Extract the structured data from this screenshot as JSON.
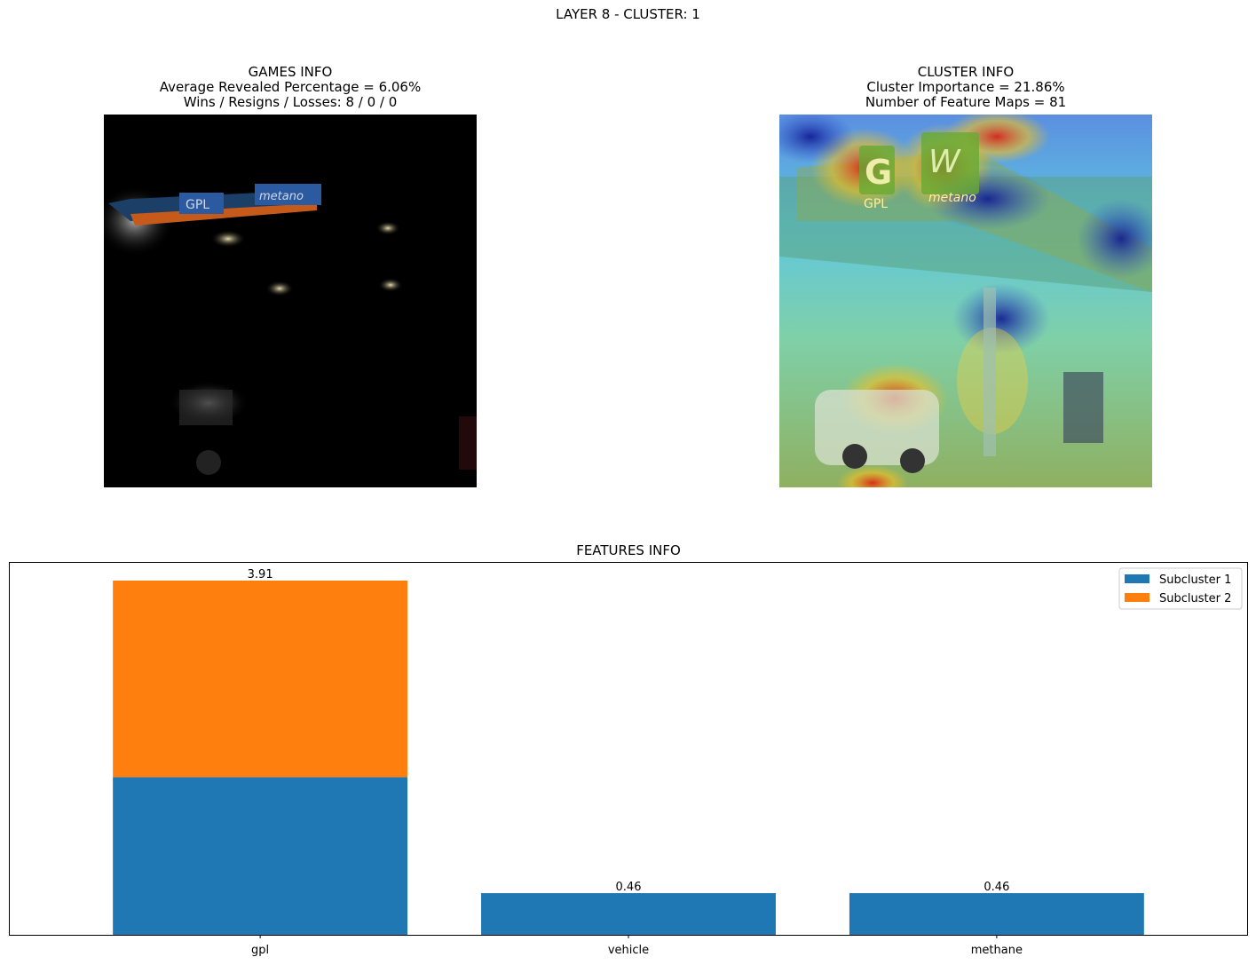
{
  "figure": {
    "suptitle": "LAYER 8 - CLUSTER: 1"
  },
  "games_info": {
    "title": "GAMES INFO",
    "line1": "Average Revealed Percentage = 6.06%",
    "line2": "Wins / Resigns / Losses: 8 / 0 / 0"
  },
  "cluster_info": {
    "title": "CLUSTER INFO",
    "line1": "Cluster Importance = 21.86%",
    "line2": "Number of Feature Maps = 81"
  },
  "images": {
    "left": {
      "depicts": "masked gas station photo (mostly black with revealed patches)"
    },
    "right": {
      "depicts": "gas station photo with jet-colormap heatmap overlay"
    }
  },
  "chart_data": {
    "type": "bar",
    "stacked": true,
    "title": "FEATURES INFO",
    "categories": [
      "gpl",
      "vehicle",
      "methane"
    ],
    "series": [
      {
        "name": "Subcluster 1",
        "color": "#1f77b4",
        "values": [
          1.74,
          0.46,
          0.46
        ]
      },
      {
        "name": "Subcluster 2",
        "color": "#ff7f0e",
        "values": [
          2.17,
          0,
          0
        ]
      }
    ],
    "totals": [
      3.91,
      0.46,
      0.46
    ],
    "total_labels": [
      "3.91",
      "0.46",
      "0.46"
    ],
    "ylim": [
      0,
      4.1055
    ],
    "yticks_visible": false,
    "grid": false,
    "legend": "top-right"
  }
}
